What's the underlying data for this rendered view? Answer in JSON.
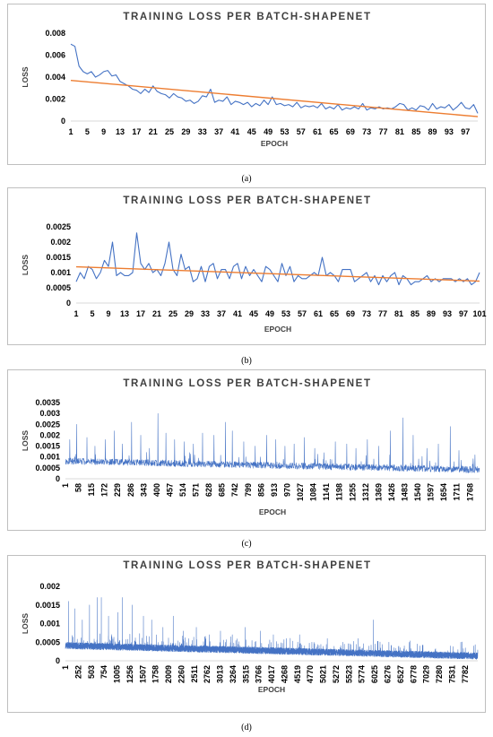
{
  "colors": {
    "series": "#4472c4",
    "trend": "#ed7d31",
    "border": "#bfbfbf",
    "axis": "#d9d9d9"
  },
  "chart_data": [
    {
      "panel": "a",
      "type": "line",
      "title": "TRAINING LOSS PER BATCH-SHAPENET",
      "xlabel": "EPOCH",
      "ylabel": "LOSS",
      "caption": "(a)",
      "ylim": [
        0,
        0.008
      ],
      "yticks": [
        "0",
        "0.002",
        "0.004",
        "0.006",
        "0.008"
      ],
      "yvals": [
        0,
        0.002,
        0.004,
        0.006,
        0.008
      ],
      "xticks": [
        "1",
        "5",
        "9",
        "13",
        "17",
        "21",
        "25",
        "29",
        "33",
        "37",
        "41",
        "45",
        "49",
        "53",
        "57",
        "61",
        "65",
        "69",
        "73",
        "77",
        "81",
        "85",
        "89",
        "93",
        "97"
      ],
      "n_points": 100,
      "anchors": [
        [
          1,
          0.007
        ],
        [
          2,
          0.0068
        ],
        [
          3,
          0.005
        ],
        [
          4,
          0.0045
        ],
        [
          5,
          0.0043
        ],
        [
          6,
          0.0045
        ],
        [
          7,
          0.004
        ],
        [
          8,
          0.0042
        ],
        [
          9,
          0.0045
        ],
        [
          10,
          0.0046
        ],
        [
          11,
          0.0041
        ],
        [
          12,
          0.0042
        ],
        [
          13,
          0.0036
        ],
        [
          14,
          0.0034
        ],
        [
          15,
          0.0032
        ],
        [
          16,
          0.0029
        ],
        [
          17,
          0.0028
        ],
        [
          18,
          0.0025
        ],
        [
          19,
          0.0029
        ],
        [
          20,
          0.0026
        ],
        [
          21,
          0.0032
        ],
        [
          22,
          0.0027
        ],
        [
          23,
          0.0025
        ],
        [
          24,
          0.0024
        ],
        [
          25,
          0.0021
        ],
        [
          26,
          0.0025
        ],
        [
          27,
          0.0022
        ],
        [
          28,
          0.0021
        ],
        [
          29,
          0.0018
        ],
        [
          30,
          0.0019
        ],
        [
          31,
          0.0016
        ],
        [
          32,
          0.0018
        ],
        [
          33,
          0.0023
        ],
        [
          34,
          0.0022
        ],
        [
          35,
          0.0029
        ],
        [
          36,
          0.0017
        ],
        [
          37,
          0.0019
        ],
        [
          38,
          0.0018
        ],
        [
          39,
          0.0022
        ],
        [
          40,
          0.0015
        ],
        [
          41,
          0.0018
        ],
        [
          42,
          0.0017
        ],
        [
          43,
          0.0015
        ],
        [
          44,
          0.0017
        ],
        [
          45,
          0.0013
        ],
        [
          46,
          0.0016
        ],
        [
          47,
          0.0014
        ],
        [
          48,
          0.0019
        ],
        [
          49,
          0.0015
        ],
        [
          50,
          0.0022
        ],
        [
          51,
          0.0015
        ],
        [
          52,
          0.0016
        ],
        [
          53,
          0.0014
        ],
        [
          54,
          0.0015
        ],
        [
          55,
          0.0013
        ],
        [
          56,
          0.0017
        ],
        [
          57,
          0.0012
        ],
        [
          58,
          0.0014
        ],
        [
          59,
          0.0013
        ],
        [
          60,
          0.0014
        ],
        [
          61,
          0.0012
        ],
        [
          62,
          0.0016
        ],
        [
          63,
          0.0011
        ],
        [
          64,
          0.0013
        ],
        [
          65,
          0.0011
        ],
        [
          66,
          0.0015
        ],
        [
          67,
          0.001
        ],
        [
          68,
          0.0012
        ],
        [
          69,
          0.0011
        ],
        [
          70,
          0.0013
        ],
        [
          71,
          0.0011
        ],
        [
          72,
          0.0016
        ],
        [
          73,
          0.001
        ],
        [
          74,
          0.0012
        ],
        [
          75,
          0.0011
        ],
        [
          76,
          0.0013
        ],
        [
          77,
          0.0011
        ],
        [
          78,
          0.0012
        ],
        [
          79,
          0.0011
        ],
        [
          80,
          0.0013
        ],
        [
          81,
          0.0016
        ],
        [
          82,
          0.0015
        ],
        [
          83,
          0.001
        ],
        [
          84,
          0.0012
        ],
        [
          85,
          0.001
        ],
        [
          86,
          0.0014
        ],
        [
          87,
          0.0013
        ],
        [
          88,
          0.001
        ],
        [
          89,
          0.0016
        ],
        [
          90,
          0.0011
        ],
        [
          91,
          0.0013
        ],
        [
          92,
          0.0012
        ],
        [
          93,
          0.0015
        ],
        [
          94,
          0.001
        ],
        [
          95,
          0.0013
        ],
        [
          96,
          0.0017
        ],
        [
          97,
          0.0012
        ],
        [
          98,
          0.0011
        ],
        [
          99,
          0.0015
        ],
        [
          100,
          0.0007
        ]
      ],
      "trend": [
        [
          1,
          0.0037
        ],
        [
          100,
          0.0004
        ]
      ]
    },
    {
      "panel": "b",
      "type": "line",
      "title": "TRAINING LOSS PER BATCH-SHAPENET",
      "xlabel": "EPOCH",
      "ylabel": "LOSS",
      "caption": "(b)",
      "ylim": [
        0,
        0.0025
      ],
      "yticks": [
        "0",
        "0.0005",
        "0.001",
        "0.0015",
        "0.002",
        "0.0025"
      ],
      "yvals": [
        0,
        0.0005,
        0.001,
        0.0015,
        0.002,
        0.0025
      ],
      "xticks": [
        "1",
        "5",
        "9",
        "13",
        "17",
        "21",
        "25",
        "29",
        "33",
        "37",
        "41",
        "45",
        "49",
        "53",
        "57",
        "61",
        "65",
        "69",
        "73",
        "77",
        "81",
        "85",
        "89",
        "93",
        "97",
        "101"
      ],
      "n_points": 101,
      "anchors": [
        [
          1,
          0.0007
        ],
        [
          2,
          0.001
        ],
        [
          3,
          0.0008
        ],
        [
          4,
          0.0012
        ],
        [
          5,
          0.0011
        ],
        [
          6,
          0.0008
        ],
        [
          7,
          0.001
        ],
        [
          8,
          0.0014
        ],
        [
          9,
          0.0012
        ],
        [
          10,
          0.002
        ],
        [
          11,
          0.0009
        ],
        [
          12,
          0.001
        ],
        [
          13,
          0.0009
        ],
        [
          14,
          0.0009
        ],
        [
          15,
          0.001
        ],
        [
          16,
          0.0023
        ],
        [
          17,
          0.0013
        ],
        [
          18,
          0.0011
        ],
        [
          19,
          0.0013
        ],
        [
          20,
          0.001
        ],
        [
          21,
          0.0011
        ],
        [
          22,
          0.0009
        ],
        [
          23,
          0.0013
        ],
        [
          24,
          0.002
        ],
        [
          25,
          0.0011
        ],
        [
          26,
          0.0009
        ],
        [
          27,
          0.0016
        ],
        [
          28,
          0.0011
        ],
        [
          29,
          0.0012
        ],
        [
          30,
          0.0007
        ],
        [
          31,
          0.0008
        ],
        [
          32,
          0.0012
        ],
        [
          33,
          0.0007
        ],
        [
          34,
          0.0012
        ],
        [
          35,
          0.0013
        ],
        [
          36,
          0.0008
        ],
        [
          37,
          0.0011
        ],
        [
          38,
          0.0011
        ],
        [
          39,
          0.0008
        ],
        [
          40,
          0.0012
        ],
        [
          41,
          0.0013
        ],
        [
          42,
          0.0008
        ],
        [
          43,
          0.0012
        ],
        [
          44,
          0.0009
        ],
        [
          45,
          0.0011
        ],
        [
          46,
          0.0009
        ],
        [
          47,
          0.0007
        ],
        [
          48,
          0.0012
        ],
        [
          49,
          0.0011
        ],
        [
          50,
          0.0009
        ],
        [
          51,
          0.0007
        ],
        [
          52,
          0.0013
        ],
        [
          53,
          0.0009
        ],
        [
          54,
          0.0012
        ],
        [
          55,
          0.0007
        ],
        [
          56,
          0.0009
        ],
        [
          57,
          0.0008
        ],
        [
          58,
          0.0008
        ],
        [
          59,
          0.0009
        ],
        [
          60,
          0.001
        ],
        [
          61,
          0.0009
        ],
        [
          62,
          0.0015
        ],
        [
          63,
          0.0009
        ],
        [
          64,
          0.001
        ],
        [
          65,
          0.0009
        ],
        [
          66,
          0.0007
        ],
        [
          67,
          0.0011
        ],
        [
          68,
          0.0011
        ],
        [
          69,
          0.0011
        ],
        [
          70,
          0.0007
        ],
        [
          71,
          0.0008
        ],
        [
          72,
          0.0009
        ],
        [
          73,
          0.001
        ],
        [
          74,
          0.0007
        ],
        [
          75,
          0.0009
        ],
        [
          76,
          0.0006
        ],
        [
          77,
          0.0009
        ],
        [
          78,
          0.0007
        ],
        [
          79,
          0.0009
        ],
        [
          80,
          0.001
        ],
        [
          81,
          0.0006
        ],
        [
          82,
          0.0009
        ],
        [
          83,
          0.0008
        ],
        [
          84,
          0.0006
        ],
        [
          85,
          0.0007
        ],
        [
          86,
          0.0007
        ],
        [
          87,
          0.0008
        ],
        [
          88,
          0.0009
        ],
        [
          89,
          0.0007
        ],
        [
          90,
          0.0008
        ],
        [
          91,
          0.0007
        ],
        [
          92,
          0.0008
        ],
        [
          93,
          0.0008
        ],
        [
          94,
          0.0008
        ],
        [
          95,
          0.0007
        ],
        [
          96,
          0.0008
        ],
        [
          97,
          0.0007
        ],
        [
          98,
          0.0008
        ],
        [
          99,
          0.0006
        ],
        [
          100,
          0.0007
        ],
        [
          101,
          0.001
        ]
      ],
      "trend": [
        [
          1,
          0.00119
        ],
        [
          101,
          0.00072
        ]
      ]
    },
    {
      "panel": "c",
      "type": "line",
      "title": "TRAINING LOSS PER BATCH-SHAPENET",
      "xlabel": "EPOCH",
      "ylabel": "LOSS",
      "caption": "(c)",
      "ylim": [
        0,
        0.0035
      ],
      "yticks": [
        "0",
        "0.0005",
        "0.001",
        "0.0015",
        "0.002",
        "0.0025",
        "0.003",
        "0.0035"
      ],
      "yvals": [
        0,
        0.0005,
        0.001,
        0.0015,
        0.002,
        0.0025,
        0.003,
        0.0035
      ],
      "xticks": [
        "1",
        "58",
        "115",
        "172",
        "229",
        "286",
        "343",
        "400",
        "457",
        "514",
        "571",
        "628",
        "685",
        "742",
        "799",
        "856",
        "913",
        "970",
        "1027",
        "1084",
        "1141",
        "1198",
        "1255",
        "1312",
        "1369",
        "1426",
        "1483",
        "1540",
        "1597",
        "1654",
        "1711",
        "1768"
      ],
      "n_points": 1810,
      "baseline": [
        0.0008,
        0.0004
      ],
      "noise": 0.0003,
      "spikes": [
        [
          20,
          0.0018
        ],
        [
          50,
          0.0025
        ],
        [
          95,
          0.0019
        ],
        [
          130,
          0.0015
        ],
        [
          175,
          0.0018
        ],
        [
          215,
          0.0022
        ],
        [
          250,
          0.0016
        ],
        [
          290,
          0.0026
        ],
        [
          330,
          0.002
        ],
        [
          368,
          0.0014
        ],
        [
          405,
          0.003
        ],
        [
          440,
          0.0021
        ],
        [
          478,
          0.0018
        ],
        [
          520,
          0.0017
        ],
        [
          560,
          0.0016
        ],
        [
          600,
          0.0021
        ],
        [
          650,
          0.002
        ],
        [
          700,
          0.0026
        ],
        [
          730,
          0.0022
        ],
        [
          780,
          0.0017
        ],
        [
          830,
          0.0015
        ],
        [
          880,
          0.002
        ],
        [
          920,
          0.0018
        ],
        [
          960,
          0.0015
        ],
        [
          1000,
          0.0016
        ],
        [
          1045,
          0.0019
        ],
        [
          1090,
          0.0014
        ],
        [
          1130,
          0.0012
        ],
        [
          1180,
          0.0017
        ],
        [
          1230,
          0.0016
        ],
        [
          1270,
          0.0014
        ],
        [
          1320,
          0.0018
        ],
        [
          1370,
          0.0015
        ],
        [
          1420,
          0.0022
        ],
        [
          1475,
          0.0028
        ],
        [
          1520,
          0.002
        ],
        [
          1580,
          0.0014
        ],
        [
          1630,
          0.0016
        ],
        [
          1682,
          0.0024
        ],
        [
          1720,
          0.0013
        ],
        [
          1790,
          0.0011
        ]
      ]
    },
    {
      "panel": "d",
      "type": "line",
      "title": "TRAINING LOSS PER BATCH-SHAPENET",
      "xlabel": "EPOCH",
      "ylabel": "LOSS",
      "caption": "(d)",
      "ylim": [
        0,
        0.002
      ],
      "yticks": [
        "0",
        "0.0005",
        "0.001",
        "0.0015",
        "0.002"
      ],
      "yvals": [
        0,
        0.0005,
        0.001,
        0.0015,
        0.002
      ],
      "xticks": [
        "1",
        "252",
        "503",
        "754",
        "1005",
        "1256",
        "1507",
        "1758",
        "2009",
        "2260",
        "2511",
        "2762",
        "3013",
        "3264",
        "3515",
        "3766",
        "4017",
        "4268",
        "4519",
        "4770",
        "5021",
        "5272",
        "5523",
        "5774",
        "6025",
        "6276",
        "6527",
        "6778",
        "7029",
        "7280",
        "7531",
        "7782"
      ],
      "n_points": 8030,
      "baseline": [
        0.0004,
        0.00012
      ],
      "noise": 0.00018,
      "spikes": [
        [
          60,
          0.0016
        ],
        [
          180,
          0.0014
        ],
        [
          330,
          0.0011
        ],
        [
          470,
          0.0015
        ],
        [
          620,
          0.0017
        ],
        [
          700,
          0.0017
        ],
        [
          840,
          0.0012
        ],
        [
          1020,
          0.0013
        ],
        [
          1110,
          0.0017
        ],
        [
          1300,
          0.0015
        ],
        [
          1520,
          0.0012
        ],
        [
          1680,
          0.0011
        ],
        [
          1900,
          0.0009
        ],
        [
          2100,
          0.0012
        ],
        [
          2300,
          0.0008
        ],
        [
          2550,
          0.0009
        ],
        [
          2800,
          0.0007
        ],
        [
          3020,
          0.0008
        ],
        [
          3250,
          0.0007
        ],
        [
          3500,
          0.0009
        ],
        [
          3800,
          0.0008
        ],
        [
          4050,
          0.0007
        ],
        [
          4300,
          0.0006
        ],
        [
          4560,
          0.0007
        ],
        [
          4800,
          0.0005
        ],
        [
          5100,
          0.0006
        ],
        [
          5400,
          0.0005
        ],
        [
          5700,
          0.0006
        ],
        [
          6000,
          0.0011
        ],
        [
          6300,
          0.0005
        ],
        [
          6600,
          0.0004
        ],
        [
          6900,
          0.0004
        ],
        [
          7200,
          0.0003
        ],
        [
          7500,
          0.0004
        ],
        [
          7700,
          0.0005
        ],
        [
          7950,
          0.0004
        ]
      ]
    }
  ]
}
